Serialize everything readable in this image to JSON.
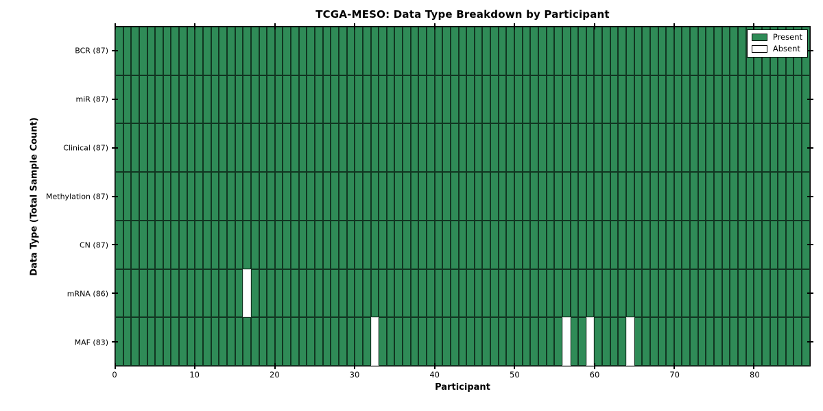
{
  "chart_data": {
    "type": "heatmap",
    "title": "TCGA-MESO: Data Type Breakdown by Participant",
    "xlabel": "Participant",
    "ylabel": "Data Type (Total Sample Count)",
    "n_participants": 87,
    "n_rows": 7,
    "x_ticks": [
      0,
      10,
      20,
      30,
      40,
      50,
      60,
      70,
      80
    ],
    "rows": [
      {
        "label": "BCR (87)",
        "data_type": "BCR",
        "present_count": 87,
        "absent_participants": []
      },
      {
        "label": "miR (87)",
        "data_type": "miR",
        "present_count": 87,
        "absent_participants": []
      },
      {
        "label": "Clinical (87)",
        "data_type": "Clinical",
        "present_count": 87,
        "absent_participants": []
      },
      {
        "label": "Methylation (87)",
        "data_type": "Methylation",
        "present_count": 87,
        "absent_participants": []
      },
      {
        "label": "CN (87)",
        "data_type": "CN",
        "present_count": 87,
        "absent_participants": []
      },
      {
        "label": "mRNA (86)",
        "data_type": "mRNA",
        "present_count": 86,
        "absent_participants": [
          16
        ]
      },
      {
        "label": "MAF (83)",
        "data_type": "MAF",
        "present_count": 83,
        "absent_participants": [
          32,
          56,
          59,
          64
        ]
      }
    ],
    "legend": [
      {
        "label": "Present",
        "color": "#2f8b57"
      },
      {
        "label": "Absent",
        "color": "#ffffff"
      }
    ],
    "colors": {
      "present": "#2f8b57",
      "absent": "#ffffff",
      "edge": "#000000",
      "background": "#ffffff"
    },
    "layout": {
      "legend_position": "upper right",
      "grid": "cell-borders",
      "x_range": [
        0,
        87
      ]
    }
  }
}
